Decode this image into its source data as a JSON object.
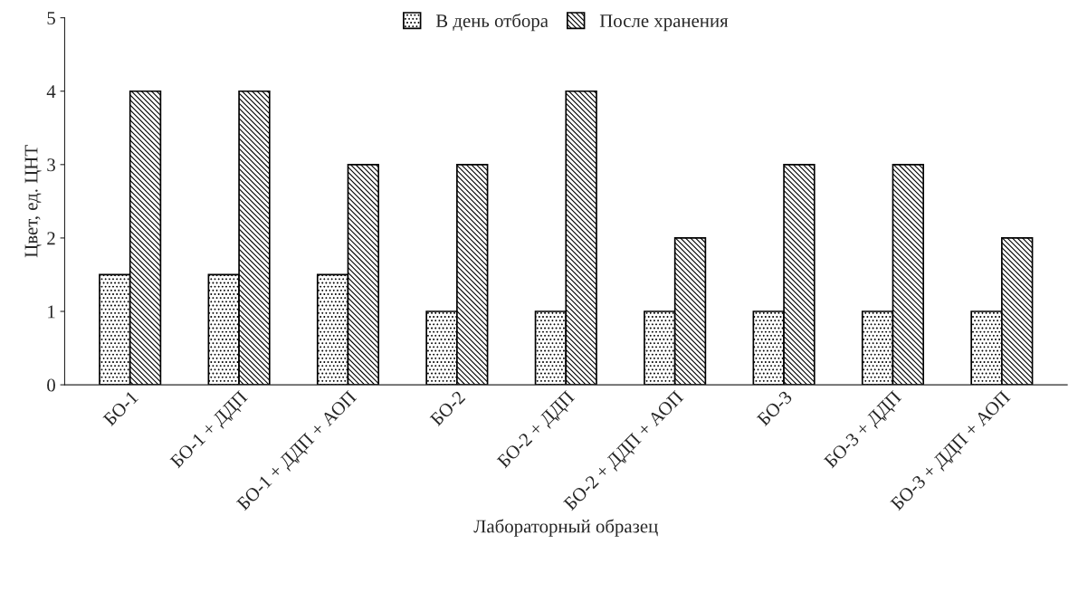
{
  "chart_data": {
    "type": "bar",
    "xlabel": "Лабораторный образец",
    "ylabel": "Цвет, ед. ЦНТ",
    "categories": [
      "БО-1",
      "БО-1 + ДДП",
      "БО-1 + ДДП + АОП",
      "БО-2",
      "БО-2 + ДДП",
      "БО-2 + ДДП + АОП",
      "БО-3",
      "БО-3 + ДДП",
      "БО-3 + ДДП + АОП"
    ],
    "series": [
      {
        "name": "В день отбора",
        "color": "#000000",
        "values": [
          1.5,
          1.5,
          1.5,
          1,
          1,
          1,
          1,
          1,
          1
        ]
      },
      {
        "name": "После хранения",
        "color": "#000000",
        "values": [
          4,
          4,
          3,
          3,
          4,
          2,
          3,
          3,
          2
        ]
      }
    ],
    "ylim": [
      0,
      5
    ],
    "yticks": [
      0,
      1,
      2,
      3,
      4,
      5
    ],
    "grid": false,
    "legend": "top"
  }
}
